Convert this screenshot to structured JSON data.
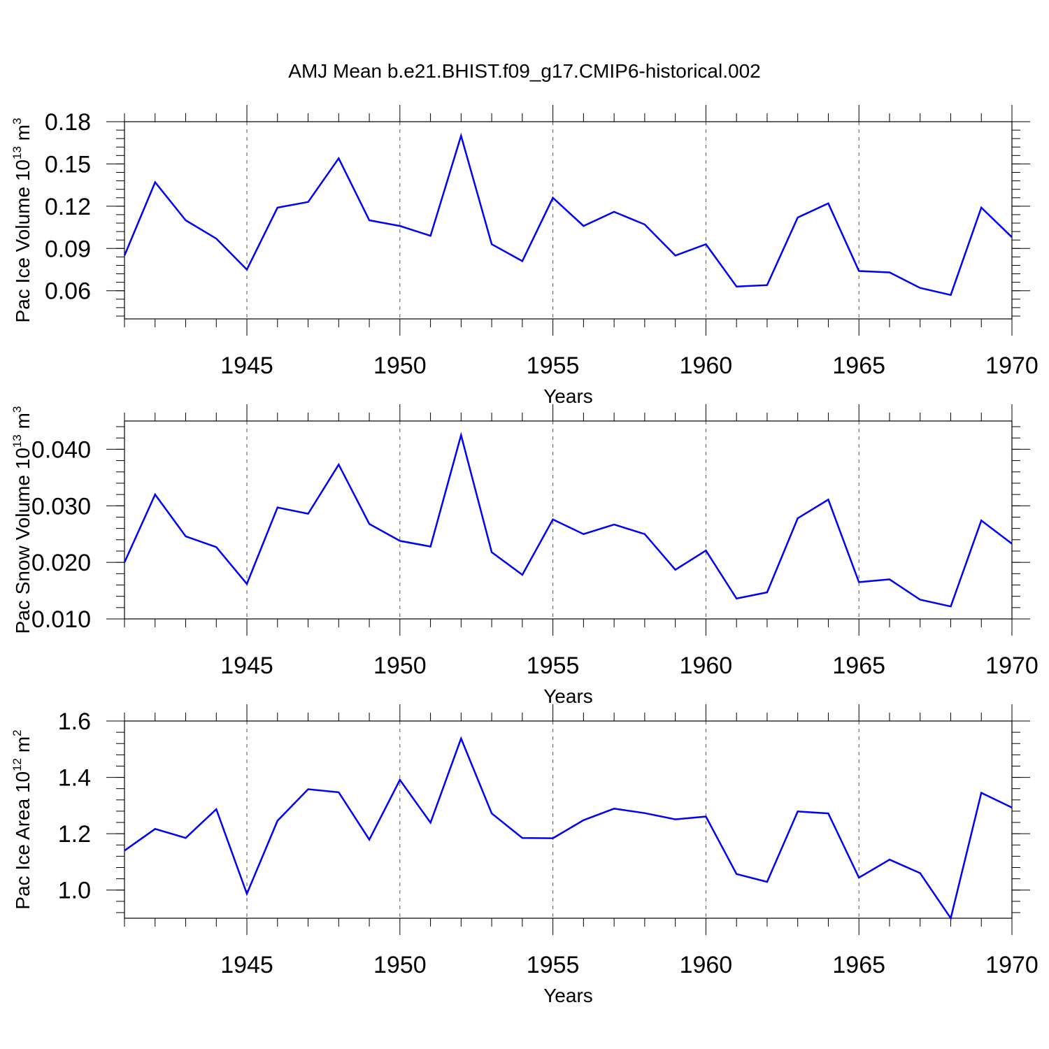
{
  "title": "AMJ Mean b.e21.BHIST.f09_g17.CMIP6-historical.002",
  "chart_data": [
    {
      "type": "line",
      "xlabel": "Years",
      "ylabel": {
        "main": "Pac Ice Volume 10",
        "sup": "13",
        "unit": " m",
        "unit_sup": "3"
      },
      "xlim": [
        1941,
        1970
      ],
      "ylim": [
        0.04,
        0.18
      ],
      "xticks": [
        "1945",
        "1950",
        "1955",
        "1960",
        "1965",
        "1970"
      ],
      "yticks": [
        "0.06",
        "0.09",
        "0.12",
        "0.15",
        "0.18"
      ],
      "line_color": "#0000ff",
      "grid": "vertical dashed at major x ticks",
      "x": [
        1941,
        1942,
        1943,
        1944,
        1945,
        1946,
        1947,
        1948,
        1949,
        1950,
        1951,
        1952,
        1953,
        1954,
        1955,
        1956,
        1957,
        1958,
        1959,
        1960,
        1961,
        1962,
        1963,
        1964,
        1965,
        1966,
        1967,
        1968,
        1969,
        1970
      ],
      "values": [
        0.085,
        0.137,
        0.11,
        0.097,
        0.075,
        0.119,
        0.123,
        0.154,
        0.11,
        0.106,
        0.099,
        0.17,
        0.093,
        0.081,
        0.126,
        0.106,
        0.116,
        0.107,
        0.085,
        0.093,
        0.063,
        0.064,
        0.112,
        0.122,
        0.074,
        0.073,
        0.062,
        0.057,
        0.119,
        0.098
      ]
    },
    {
      "type": "line",
      "xlabel": "Years",
      "ylabel": {
        "main": "Pac Snow Volume 10",
        "sup": "13",
        "unit": " m",
        "unit_sup": "3"
      },
      "xlim": [
        1941,
        1970
      ],
      "ylim": [
        0.01,
        0.045
      ],
      "xticks": [
        "1945",
        "1950",
        "1955",
        "1960",
        "1965",
        "1970"
      ],
      "yticks": [
        "0.010",
        "0.020",
        "0.030",
        "0.040"
      ],
      "line_color": "#0000ff",
      "grid": "vertical dashed at major x ticks",
      "x": [
        1941,
        1942,
        1943,
        1944,
        1945,
        1946,
        1947,
        1948,
        1949,
        1950,
        1951,
        1952,
        1953,
        1954,
        1955,
        1956,
        1957,
        1958,
        1959,
        1960,
        1961,
        1962,
        1963,
        1964,
        1965,
        1966,
        1967,
        1968,
        1969,
        1970
      ],
      "values": [
        0.02,
        0.032,
        0.0246,
        0.0227,
        0.0162,
        0.0297,
        0.0286,
        0.0373,
        0.0268,
        0.0238,
        0.0228,
        0.0425,
        0.0218,
        0.0178,
        0.0276,
        0.025,
        0.0267,
        0.025,
        0.0187,
        0.0221,
        0.0136,
        0.0147,
        0.0278,
        0.0311,
        0.0165,
        0.017,
        0.0134,
        0.0122,
        0.0274,
        0.0233
      ]
    },
    {
      "type": "line",
      "xlabel": "Years",
      "ylabel": {
        "main": "Pac Ice Area 10",
        "sup": "12",
        "unit": " m",
        "unit_sup": "2"
      },
      "xlim": [
        1941,
        1970
      ],
      "ylim": [
        0.9,
        1.6
      ],
      "xticks": [
        "1945",
        "1950",
        "1955",
        "1960",
        "1965",
        "1970"
      ],
      "yticks": [
        "1.0",
        "1.2",
        "1.4",
        "1.6"
      ],
      "line_color": "#0000ff",
      "grid": "vertical dashed at major x ticks",
      "x": [
        1941,
        1942,
        1943,
        1944,
        1945,
        1946,
        1947,
        1948,
        1949,
        1950,
        1951,
        1952,
        1953,
        1954,
        1955,
        1956,
        1957,
        1958,
        1959,
        1960,
        1961,
        1962,
        1963,
        1964,
        1965,
        1966,
        1967,
        1968,
        1969,
        1970
      ],
      "values": [
        1.14,
        1.217,
        1.185,
        1.287,
        0.987,
        1.246,
        1.358,
        1.347,
        1.179,
        1.391,
        1.239,
        1.538,
        1.272,
        1.185,
        1.184,
        1.248,
        1.289,
        1.273,
        1.251,
        1.261,
        1.057,
        1.029,
        1.279,
        1.272,
        1.044,
        1.108,
        1.06,
        0.9,
        1.345,
        1.293
      ]
    }
  ]
}
